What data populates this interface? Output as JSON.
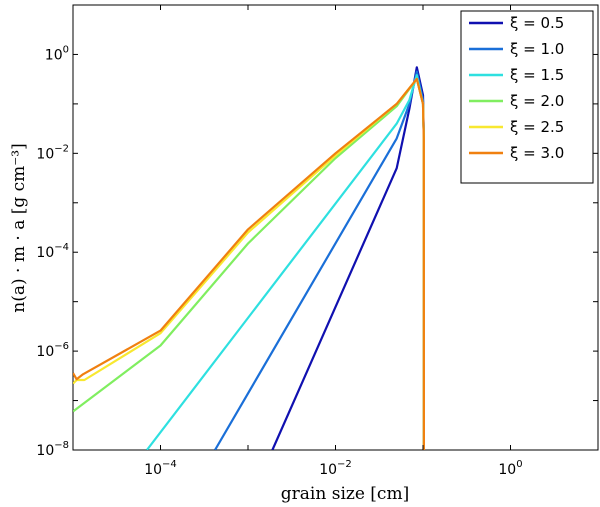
{
  "chart_data": {
    "type": "line",
    "title": "",
    "xlabel": "grain size [cm]",
    "ylabel": "n(a) · m · a  [g cm⁻³]",
    "xscale": "log",
    "yscale": "log",
    "xlim": [
      1e-05,
      10
    ],
    "ylim": [
      1e-08,
      10
    ],
    "grid": false,
    "legend_position": "top-right",
    "x_ticks": [
      {
        "value": 0.0001,
        "base": "10",
        "exp": "−4"
      },
      {
        "value": 0.01,
        "base": "10",
        "exp": "−2"
      },
      {
        "value": 1,
        "base": "10",
        "exp": "0"
      }
    ],
    "y_ticks": [
      {
        "value": 1e-08,
        "base": "10",
        "exp": "−8"
      },
      {
        "value": 1e-06,
        "base": "10",
        "exp": "−6"
      },
      {
        "value": 0.0001,
        "base": "10",
        "exp": "−4"
      },
      {
        "value": 0.01,
        "base": "10",
        "exp": "−2"
      },
      {
        "value": 1,
        "base": "10",
        "exp": "0"
      }
    ],
    "series": [
      {
        "name": "ξ = 0.5",
        "color": "#1010b0",
        "x": [
          0.0019,
          0.05,
          0.07,
          0.085,
          0.1,
          0.102,
          0.1025
        ],
        "y": [
          1e-08,
          0.005,
          0.08,
          0.55,
          0.15,
          0.02,
          1e-08
        ]
      },
      {
        "name": "ξ = 1.0",
        "color": "#1a6fd8",
        "x": [
          0.00042,
          0.05,
          0.07,
          0.085,
          0.1,
          0.102,
          0.1025
        ],
        "y": [
          1e-08,
          0.02,
          0.1,
          0.45,
          0.12,
          0.02,
          1e-08
        ]
      },
      {
        "name": "ξ = 1.5",
        "color": "#2ee0e0",
        "x": [
          7e-05,
          0.05,
          0.07,
          0.085,
          0.1,
          0.102,
          0.1025
        ],
        "y": [
          1e-08,
          0.04,
          0.12,
          0.38,
          0.1,
          0.02,
          1e-08
        ]
      },
      {
        "name": "ξ = 2.0",
        "color": "#80ee60",
        "x": [
          1e-05,
          0.0001,
          0.001,
          0.01,
          0.05,
          0.085,
          0.1,
          0.102,
          0.1025
        ],
        "y": [
          6e-08,
          1.3e-06,
          0.00015,
          0.008,
          0.09,
          0.32,
          0.1,
          0.02,
          1e-08
        ]
      },
      {
        "name": "ξ = 2.5",
        "color": "#f8e830",
        "x": [
          1e-05,
          1.1e-05,
          1.35e-05,
          0.0001,
          0.001,
          0.01,
          0.05,
          0.085,
          0.1,
          0.102,
          0.1025
        ],
        "y": [
          2.2e-07,
          2.6e-07,
          2.6e-07,
          2.3e-06,
          0.00025,
          0.009,
          0.1,
          0.32,
          0.1,
          0.02,
          1e-08
        ]
      },
      {
        "name": "ξ = 3.0",
        "color": "#f08010",
        "x": [
          1e-05,
          1.1e-05,
          1.3e-05,
          0.0001,
          0.001,
          0.01,
          0.05,
          0.085,
          0.1,
          0.102,
          0.1025
        ],
        "y": [
          3.6e-07,
          2.7e-07,
          3.4e-07,
          2.6e-06,
          0.00029,
          0.01,
          0.1,
          0.32,
          0.1,
          0.02,
          1e-08
        ]
      }
    ]
  }
}
